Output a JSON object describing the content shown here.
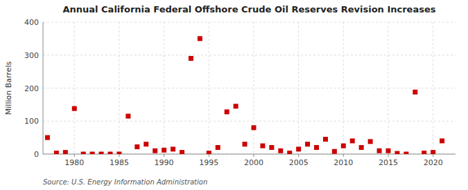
{
  "chart_data": {
    "type": "scatter",
    "title": "Annual California Federal Offshore Crude Oil Reserves Revision Increases",
    "ylabel": "Million Barrels",
    "source": "Source: U.S. Energy Information Administration",
    "color": "#cc0000",
    "marker": "square",
    "grid": true,
    "xlim": [
      1976.5,
      2022.5
    ],
    "ylim": [
      0,
      400
    ],
    "xticks": [
      1980,
      1985,
      1990,
      1995,
      2000,
      2005,
      2010,
      2015,
      2020
    ],
    "yticks": [
      0,
      100,
      200,
      300,
      400
    ],
    "x": [
      1977,
      1978,
      1979,
      1980,
      1981,
      1982,
      1983,
      1984,
      1985,
      1986,
      1987,
      1988,
      1989,
      1990,
      1991,
      1992,
      1993,
      1994,
      1995,
      1996,
      1997,
      1998,
      1999,
      2000,
      2001,
      2002,
      2003,
      2004,
      2005,
      2006,
      2007,
      2008,
      2009,
      2010,
      2011,
      2012,
      2013,
      2014,
      2015,
      2016,
      2017,
      2018,
      2019,
      2020,
      2021
    ],
    "values": [
      50,
      3,
      5,
      138,
      0,
      0,
      0,
      0,
      0,
      115,
      22,
      30,
      10,
      12,
      15,
      5,
      290,
      350,
      3,
      20,
      128,
      145,
      30,
      80,
      25,
      20,
      10,
      3,
      15,
      30,
      20,
      45,
      8,
      25,
      40,
      20,
      38,
      10,
      10,
      2,
      0,
      188,
      3,
      5,
      40
    ]
  }
}
